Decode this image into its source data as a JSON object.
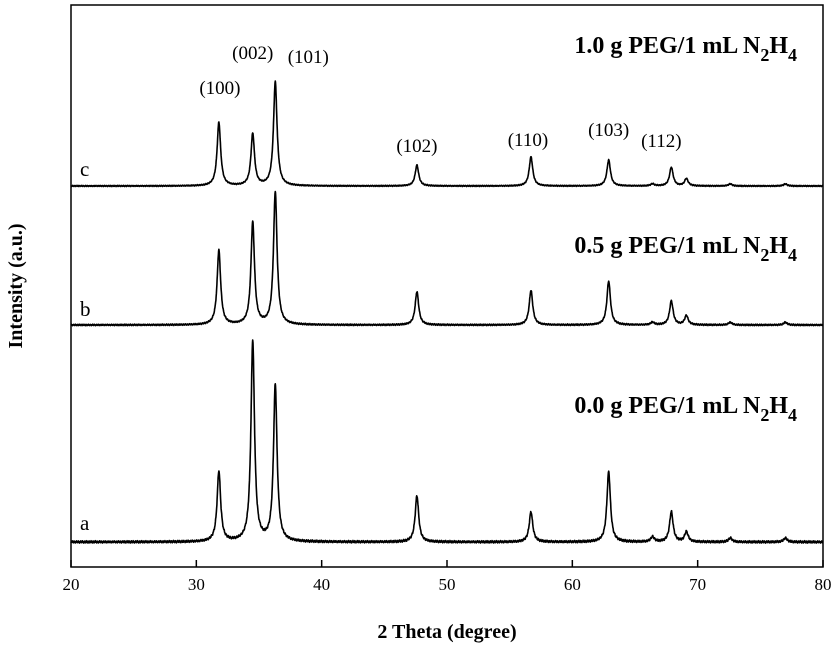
{
  "chart_data": {
    "type": "line",
    "xlabel": "2 Theta (degree)",
    "ylabel": "Intensity (a.u.)",
    "xlim": [
      20,
      80
    ],
    "xticks": [
      "20",
      "30",
      "40",
      "50",
      "60",
      "70",
      "80"
    ],
    "y_ticks_shown": false,
    "grid": false,
    "series": [
      {
        "letter": "a",
        "label": {
          "main": "0.0 g PEG/1 mL N",
          "sub1": "2",
          "mid": "H",
          "sub2": "4"
        },
        "peaks": [
          {
            "x": 31.8,
            "rel": 0.35
          },
          {
            "x": 34.5,
            "rel": 1.0
          },
          {
            "x": 36.3,
            "rel": 0.78
          },
          {
            "x": 47.6,
            "rel": 0.23
          },
          {
            "x": 56.7,
            "rel": 0.15
          },
          {
            "x": 62.9,
            "rel": 0.35
          },
          {
            "x": 66.4,
            "rel": 0.025
          },
          {
            "x": 67.9,
            "rel": 0.15
          },
          {
            "x": 69.1,
            "rel": 0.05
          },
          {
            "x": 72.6,
            "rel": 0.02
          },
          {
            "x": 77.0,
            "rel": 0.02
          }
        ]
      },
      {
        "letter": "b",
        "label": {
          "main": "0.5 g PEG/1 mL N",
          "sub1": "2",
          "mid": "H",
          "sub2": "4"
        },
        "peaks": [
          {
            "x": 31.8,
            "rel": 0.56
          },
          {
            "x": 34.5,
            "rel": 0.77
          },
          {
            "x": 36.3,
            "rel": 1.0
          },
          {
            "x": 47.6,
            "rel": 0.25
          },
          {
            "x": 56.7,
            "rel": 0.26
          },
          {
            "x": 62.9,
            "rel": 0.33
          },
          {
            "x": 66.4,
            "rel": 0.02
          },
          {
            "x": 67.9,
            "rel": 0.18
          },
          {
            "x": 69.1,
            "rel": 0.07
          },
          {
            "x": 72.6,
            "rel": 0.02
          },
          {
            "x": 77.0,
            "rel": 0.02
          }
        ]
      },
      {
        "letter": "c",
        "label": {
          "main": "1.0 g PEG/1 mL N",
          "sub1": "2",
          "mid": "H",
          "sub2": "4"
        },
        "peaks": [
          {
            "x": 31.8,
            "rel": 0.61
          },
          {
            "x": 34.5,
            "rel": 0.5
          },
          {
            "x": 36.3,
            "rel": 1.0
          },
          {
            "x": 47.6,
            "rel": 0.2
          },
          {
            "x": 56.7,
            "rel": 0.28
          },
          {
            "x": 62.9,
            "rel": 0.25
          },
          {
            "x": 66.4,
            "rel": 0.02
          },
          {
            "x": 67.9,
            "rel": 0.18
          },
          {
            "x": 69.1,
            "rel": 0.07
          },
          {
            "x": 72.6,
            "rel": 0.02
          },
          {
            "x": 77.0,
            "rel": 0.02
          }
        ]
      }
    ],
    "annotations": [
      {
        "text": "(100)",
        "x": 31.8
      },
      {
        "text": "(002)",
        "x": 34.5
      },
      {
        "text": "(101)",
        "x": 36.3
      },
      {
        "text": "(102)",
        "x": 47.6
      },
      {
        "text": "(110)",
        "x": 56.7
      },
      {
        "text": "(103)",
        "x": 62.9
      },
      {
        "text": "(112)",
        "x": 67.9
      }
    ]
  }
}
